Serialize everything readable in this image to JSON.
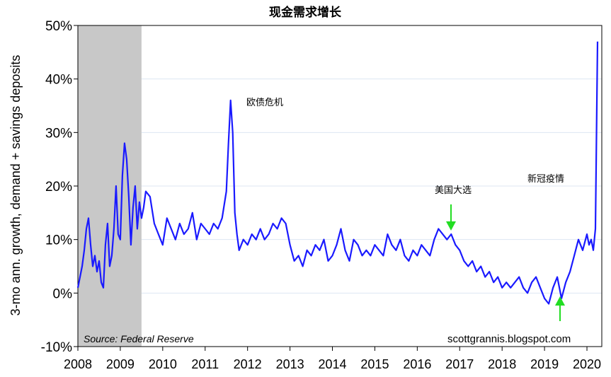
{
  "chart_data": {
    "type": "line",
    "title": "现金需求增长",
    "ylabel": "3-mo ann. growth, demand + savings deposits",
    "xlabel": "",
    "xlim": [
      2008,
      2020.35
    ],
    "ylim": [
      -10,
      50
    ],
    "y_ticks": [
      "50%",
      "40%",
      "30%",
      "20%",
      "10%",
      "0%",
      "-10%"
    ],
    "y_tick_values": [
      50,
      40,
      30,
      20,
      10,
      0,
      -10
    ],
    "x_ticks": [
      "2008",
      "2009",
      "2010",
      "2011",
      "2012",
      "2013",
      "2014",
      "2015",
      "2016",
      "2017",
      "2018",
      "2019",
      "2020"
    ],
    "x_tick_values": [
      2008,
      2009,
      2010,
      2011,
      2012,
      2013,
      2014,
      2015,
      2016,
      2017,
      2018,
      2019,
      2020
    ],
    "grid": "horizontal",
    "recession_shade": [
      2008,
      2009.5
    ],
    "series": [
      {
        "color": "#1a1aff",
        "x": [
          2008.0,
          2008.05,
          2008.1,
          2008.15,
          2008.2,
          2008.25,
          2008.3,
          2008.35,
          2008.4,
          2008.45,
          2008.5,
          2008.55,
          2008.6,
          2008.65,
          2008.7,
          2008.75,
          2008.8,
          2008.85,
          2008.9,
          2008.95,
          2009.0,
          2009.05,
          2009.1,
          2009.15,
          2009.2,
          2009.25,
          2009.3,
          2009.35,
          2009.4,
          2009.45,
          2009.5,
          2009.55,
          2009.6,
          2009.7,
          2009.8,
          2009.9,
          2010.0,
          2010.1,
          2010.2,
          2010.3,
          2010.4,
          2010.5,
          2010.6,
          2010.7,
          2010.8,
          2010.9,
          2011.0,
          2011.1,
          2011.2,
          2011.3,
          2011.4,
          2011.5,
          2011.55,
          2011.6,
          2011.65,
          2011.7,
          2011.75,
          2011.8,
          2011.9,
          2012.0,
          2012.1,
          2012.2,
          2012.3,
          2012.4,
          2012.5,
          2012.6,
          2012.7,
          2012.8,
          2012.9,
          2013.0,
          2013.1,
          2013.2,
          2013.3,
          2013.4,
          2013.5,
          2013.6,
          2013.7,
          2013.8,
          2013.9,
          2014.0,
          2014.1,
          2014.2,
          2014.3,
          2014.4,
          2014.5,
          2014.6,
          2014.7,
          2014.8,
          2014.9,
          2015.0,
          2015.1,
          2015.2,
          2015.3,
          2015.4,
          2015.5,
          2015.6,
          2015.7,
          2015.8,
          2015.9,
          2016.0,
          2016.1,
          2016.2,
          2016.3,
          2016.4,
          2016.5,
          2016.6,
          2016.7,
          2016.8,
          2016.9,
          2017.0,
          2017.1,
          2017.2,
          2017.3,
          2017.4,
          2017.5,
          2017.6,
          2017.7,
          2017.8,
          2017.9,
          2018.0,
          2018.1,
          2018.2,
          2018.3,
          2018.4,
          2018.5,
          2018.6,
          2018.7,
          2018.8,
          2018.9,
          2019.0,
          2019.1,
          2019.2,
          2019.3,
          2019.4,
          2019.5,
          2019.6,
          2019.7,
          2019.8,
          2019.9,
          2020.0,
          2020.05,
          2020.1,
          2020.15,
          2020.2,
          2020.25
        ],
        "y": [
          1,
          3,
          5,
          8,
          12,
          14,
          9,
          5,
          7,
          4,
          6,
          2,
          1,
          9,
          13,
          5,
          7,
          12,
          20,
          11,
          10,
          22,
          28,
          25,
          18,
          9,
          16,
          20,
          12,
          17,
          14,
          16,
          19,
          18,
          13,
          11,
          9,
          14,
          12,
          10,
          13,
          11,
          12,
          15,
          10,
          13,
          12,
          11,
          13,
          12,
          14,
          19,
          28,
          36,
          30,
          15,
          11,
          8,
          10,
          9,
          11,
          10,
          12,
          10,
          11,
          13,
          12,
          14,
          13,
          9,
          6,
          7,
          5,
          8,
          7,
          9,
          8,
          10,
          6,
          7,
          9,
          12,
          8,
          6,
          10,
          9,
          7,
          8,
          7,
          9,
          8,
          7,
          11,
          9,
          8,
          10,
          7,
          6,
          8,
          7,
          9,
          8,
          7,
          10,
          12,
          11,
          10,
          11,
          9,
          8,
          6,
          5,
          6,
          4,
          5,
          3,
          4,
          2,
          3,
          1,
          2,
          1,
          2,
          3,
          1,
          0,
          2,
          3,
          1,
          -1,
          -2,
          1,
          3,
          -1,
          2,
          4,
          7,
          10,
          8,
          11,
          9,
          10,
          8,
          12,
          47
        ]
      }
    ],
    "annotations": [
      "欧债危机",
      "美国大选",
      "新冠疫情"
    ],
    "source": "Source: Federal Reserve",
    "credit": "scottgrannis.blogspot.com"
  }
}
